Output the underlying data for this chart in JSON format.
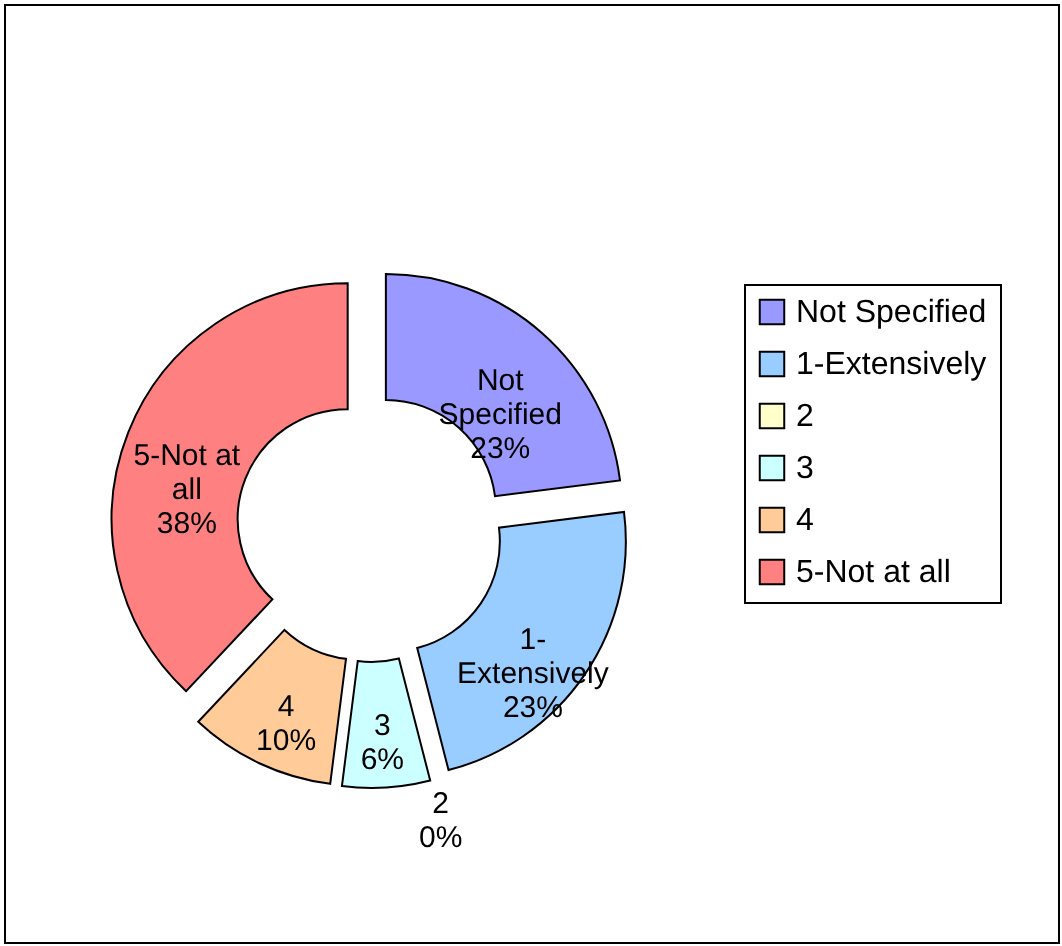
{
  "chart_data": {
    "type": "donut",
    "categories": [
      "Not Specified",
      "1-Extensively",
      "2",
      "3",
      "4",
      "5-Not at all"
    ],
    "values": [
      23,
      23,
      0,
      6,
      10,
      38
    ],
    "value_labels": [
      "23%",
      "23%",
      "0%",
      "6%",
      "10%",
      "38%"
    ],
    "colors": [
      "#9999ff",
      "#99ccff",
      "#ffffcc",
      "#ccffff",
      "#ffcc99",
      "#ff8080"
    ],
    "legend": "right"
  }
}
